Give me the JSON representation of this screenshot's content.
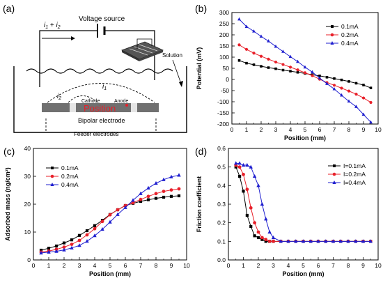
{
  "figure": {
    "schematic": {
      "panel_label": "(a)",
      "voltage_source": "Voltage source",
      "current_total_i1": "i",
      "current_total_sub1": "1",
      "current_total_plus": " + ",
      "current_total_i2": "i",
      "current_total_sub2": "2",
      "solution": "Solution",
      "i1": "i",
      "i1_sub": "1",
      "i2": "i",
      "i2_sub": "2",
      "cathode": "Cathode",
      "anode": "Anode",
      "position": "Position",
      "bipolar_electrode": "Bipolar electrode",
      "feeder_electrodes": "Feeder electrodes"
    }
  },
  "chart_data": [
    {
      "panel_label": "(b)",
      "type": "line",
      "xlabel": "Position (mm)",
      "ylabel": "Potential (mV)",
      "xlim": [
        0,
        10
      ],
      "ylim": [
        -200,
        300
      ],
      "xticks": [
        "0",
        "1",
        "2",
        "3",
        "4",
        "5",
        "6",
        "7",
        "8",
        "9",
        "10"
      ],
      "yticks": [
        "-200",
        "-150",
        "-100",
        "-50",
        "0",
        "50",
        "100",
        "150",
        "200",
        "250",
        "300"
      ],
      "legend_position": "top-right",
      "x": [
        0.5,
        1,
        1.5,
        2,
        2.5,
        3,
        3.5,
        4,
        4.5,
        5,
        5.5,
        6,
        6.5,
        7,
        7.5,
        8,
        8.5,
        9,
        9.5
      ],
      "series": [
        {
          "name": "0.1mA",
          "color": "#000000",
          "marker": "square",
          "values": [
            85,
            73,
            66,
            59,
            53,
            48,
            42,
            37,
            32,
            27,
            21,
            16,
            10,
            4,
            -2,
            -9,
            -17,
            -25,
            -38
          ]
        },
        {
          "name": "0.2mA",
          "color": "#e8202a",
          "marker": "circle",
          "values": [
            155,
            135,
            118,
            104,
            91,
            78,
            67,
            55,
            43,
            30,
            17,
            1,
            -14,
            -26,
            -39,
            -52,
            -66,
            -83,
            -103
          ]
        },
        {
          "name": "0.4mA",
          "color": "#1f1fcf",
          "marker": "triangle",
          "values": [
            270,
            237,
            216,
            193,
            172,
            148,
            125,
            102,
            80,
            55,
            33,
            6,
            -19,
            -43,
            -71,
            -98,
            -122,
            -157,
            -192
          ]
        }
      ]
    },
    {
      "panel_label": "(c)",
      "type": "line",
      "xlabel": "Position (mm)",
      "ylabel": "Adsorbed mass (ng/cm²)",
      "xlim": [
        0,
        10
      ],
      "ylim": [
        0,
        40
      ],
      "xticks": [
        "0",
        "1",
        "2",
        "3",
        "4",
        "5",
        "6",
        "7",
        "8",
        "9",
        "10"
      ],
      "yticks": [
        "0",
        "10",
        "20",
        "30",
        "40"
      ],
      "legend_position": "top-left",
      "x": [
        0.5,
        1,
        1.5,
        2,
        2.5,
        3,
        3.5,
        4,
        4.5,
        5,
        5.5,
        6,
        6.5,
        7,
        7.5,
        8,
        8.5,
        9,
        9.5
      ],
      "series": [
        {
          "name": "0.1mA",
          "color": "#000000",
          "marker": "square",
          "values": [
            3.5,
            4.2,
            5,
            6.1,
            7.2,
            8.8,
            10.5,
            12.3,
            14.2,
            16.3,
            18,
            19.5,
            20.3,
            21,
            21.6,
            22.1,
            22.5,
            22.8,
            23
          ]
        },
        {
          "name": "0.2mA",
          "color": "#e8202a",
          "marker": "circle",
          "values": [
            2.8,
            3.2,
            3.8,
            4.6,
            5.6,
            7,
            9,
            11.2,
            13.8,
            16.2,
            18,
            19.5,
            20.5,
            21.7,
            22.8,
            23.8,
            24.6,
            25.1,
            25.5
          ]
        },
        {
          "name": "0.4mA",
          "color": "#1f1fcf",
          "marker": "triangle",
          "values": [
            2.5,
            2.8,
            3.1,
            3.6,
            4.3,
            5.2,
            6.7,
            8.7,
            11,
            13.6,
            16.3,
            18.8,
            21.4,
            23.8,
            25.8,
            27.5,
            28.8,
            29.8,
            30.4
          ]
        }
      ]
    },
    {
      "panel_label": "(d)",
      "type": "line",
      "xlabel": "Position (mm)",
      "ylabel": "Friction coefficient",
      "xlim": [
        0,
        10
      ],
      "ylim": [
        0,
        0.6
      ],
      "xticks": [
        "0",
        "1",
        "2",
        "3",
        "4",
        "5",
        "6",
        "7",
        "8",
        "9",
        "10"
      ],
      "yticks": [
        "0.0",
        "0.1",
        "0.2",
        "0.3",
        "0.4",
        "0.5",
        "0.6"
      ],
      "legend_position": "top-right",
      "x": [
        0.5,
        0.75,
        1,
        1.25,
        1.5,
        1.75,
        2,
        2.25,
        2.5,
        2.75,
        3,
        3.5,
        4,
        4.5,
        5,
        5.5,
        6,
        6.5,
        7,
        7.5,
        8,
        8.5,
        9,
        9.5
      ],
      "series": [
        {
          "name": "I=0.1mA",
          "color": "#000000",
          "marker": "square",
          "values": [
            0.5,
            0.45,
            0.37,
            0.24,
            0.18,
            0.13,
            0.12,
            0.11,
            0.1,
            0.1,
            0.1,
            0.1,
            0.1,
            0.1,
            0.1,
            0.1,
            0.1,
            0.1,
            0.1,
            0.1,
            0.1,
            0.1,
            0.1,
            0.1
          ]
        },
        {
          "name": "I=0.2mA",
          "color": "#e8202a",
          "marker": "circle",
          "values": [
            0.51,
            0.5,
            0.46,
            0.38,
            0.28,
            0.2,
            0.15,
            0.12,
            0.11,
            0.1,
            0.1,
            0.1,
            0.1,
            0.1,
            0.1,
            0.1,
            0.1,
            0.1,
            0.1,
            0.1,
            0.1,
            0.1,
            0.1,
            0.1
          ]
        },
        {
          "name": "I=0.4mA",
          "color": "#1f1fcf",
          "marker": "triangle",
          "values": [
            0.52,
            0.52,
            0.51,
            0.51,
            0.5,
            0.45,
            0.4,
            0.3,
            0.22,
            0.15,
            0.12,
            0.1,
            0.1,
            0.1,
            0.1,
            0.1,
            0.1,
            0.1,
            0.1,
            0.1,
            0.1,
            0.1,
            0.1,
            0.1
          ]
        }
      ]
    }
  ]
}
